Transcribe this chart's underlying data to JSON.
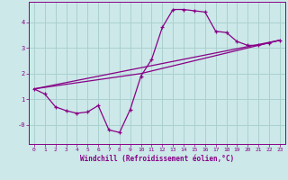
{
  "xlabel": "Windchill (Refroidissement éolien,°C)",
  "bg_color": "#cce8e8",
  "grid_color": "#aad0d0",
  "line_color": "#880088",
  "marker": "+",
  "xlim": [
    -0.5,
    23.5
  ],
  "ylim": [
    -0.75,
    4.8
  ],
  "xticks": [
    0,
    1,
    2,
    3,
    4,
    5,
    6,
    7,
    8,
    9,
    10,
    11,
    12,
    13,
    14,
    15,
    16,
    17,
    18,
    19,
    20,
    21,
    22,
    23
  ],
  "yticks": [
    0,
    1,
    2,
    3,
    4
  ],
  "ytick_labels": [
    "-0",
    "1",
    "2",
    "3",
    "4"
  ],
  "series": [
    [
      0,
      1.4
    ],
    [
      1,
      1.2
    ],
    [
      2,
      0.7
    ],
    [
      3,
      0.55
    ],
    [
      4,
      0.45
    ],
    [
      5,
      0.5
    ],
    [
      6,
      0.75
    ],
    [
      7,
      -0.2
    ],
    [
      8,
      -0.3
    ],
    [
      9,
      0.6
    ],
    [
      10,
      1.9
    ],
    [
      11,
      2.55
    ],
    [
      12,
      3.8
    ],
    [
      13,
      4.5
    ],
    [
      14,
      4.5
    ],
    [
      15,
      4.45
    ],
    [
      16,
      4.4
    ],
    [
      17,
      3.65
    ],
    [
      18,
      3.6
    ],
    [
      19,
      3.25
    ],
    [
      20,
      3.1
    ],
    [
      21,
      3.1
    ],
    [
      22,
      3.2
    ],
    [
      23,
      3.3
    ]
  ],
  "line_lower": [
    [
      0,
      1.4
    ],
    [
      23,
      3.3
    ]
  ],
  "line_upper": [
    [
      0,
      1.4
    ],
    [
      10,
      2.0
    ],
    [
      23,
      3.3
    ]
  ]
}
